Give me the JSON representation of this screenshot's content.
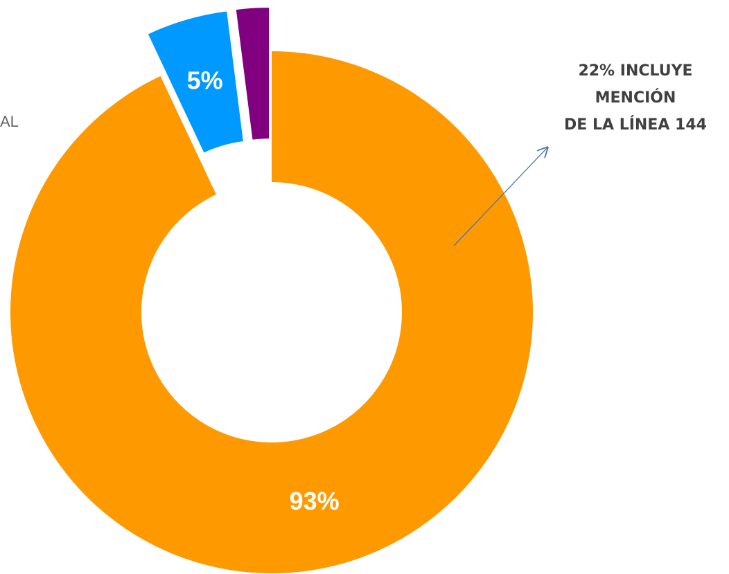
{
  "chart_data": {
    "type": "pie",
    "values": [
      93,
      5,
      2
    ],
    "value_labels": [
      "93%",
      "5%",
      null
    ],
    "colors": [
      "#ff9900",
      "#0099ff",
      "#800080"
    ],
    "annotation": [
      "22% INCLUYE",
      "MENCIÓN",
      "DE LA LÍNEA 144"
    ],
    "legend_fragment": "AL"
  }
}
